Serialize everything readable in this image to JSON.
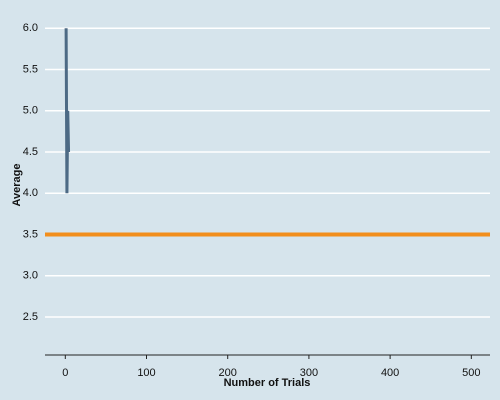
{
  "chart_data": {
    "type": "line",
    "x_label": "Number of Trials",
    "y_label": "Average",
    "x": [
      1,
      2,
      3,
      4
    ],
    "series": [
      {
        "color": "#4d6a85",
        "values": [
          6,
          4,
          5,
          4.5
        ]
      }
    ],
    "hline": {
      "value": 3.5,
      "color": "#f28e1c"
    },
    "xlim": [
      -25,
      523
    ],
    "ylim": [
      2.04,
      6.1
    ],
    "xticks": [
      0,
      100,
      200,
      300,
      400,
      500
    ],
    "yticks": [
      2.5,
      {
        "value": 3,
        "label": "3.0"
      },
      3.5,
      {
        "value": 4,
        "label": "4.0"
      },
      4.5,
      {
        "value": 5,
        "label": "5.0"
      },
      5.5,
      {
        "value": 6,
        "label": "6.0"
      }
    ],
    "grid": true
  }
}
